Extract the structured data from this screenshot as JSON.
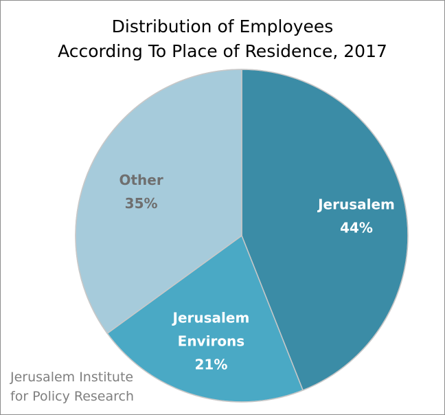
{
  "chart_data": {
    "type": "pie",
    "title_lines": [
      "Distribution of Employees",
      "According To Place of Residence, 2017"
    ],
    "slices": [
      {
        "label_lines": [
          "Jerusalem"
        ],
        "percent_label": "44%",
        "value": 44,
        "color": "#3b8ca6",
        "label_color": "#ffffff"
      },
      {
        "label_lines": [
          "Jerusalem",
          "Environs"
        ],
        "percent_label": "21%",
        "value": 21,
        "color": "#4aa9c5",
        "label_color": "#ffffff"
      },
      {
        "label_lines": [
          "Other"
        ],
        "percent_label": "35%",
        "value": 35,
        "color": "#a6cbdb",
        "label_color": "#6f6f6f"
      }
    ],
    "legend": "none",
    "start_angle": "12 o'clock",
    "direction": "clockwise"
  },
  "source": {
    "line1": "Jerusalem Institute",
    "line2": "for Policy Research"
  }
}
